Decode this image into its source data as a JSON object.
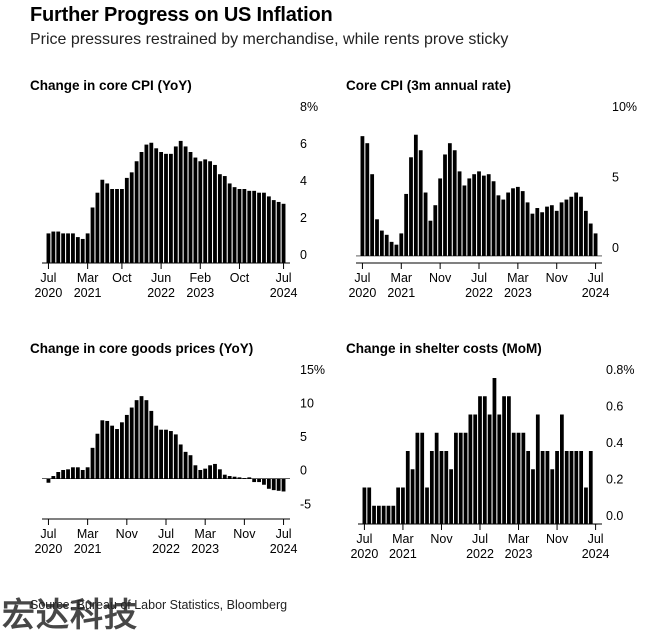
{
  "header": {
    "title": "Further Progress on US Inflation",
    "subtitle": "Price pressures restrained by merchandise, while rents prove sticky"
  },
  "footer": {
    "source": "Source: Bureau of Labor Statistics, Bloomberg"
  },
  "watermark": {
    "text": "宏达科技"
  },
  "colors": {
    "bar": "#000000",
    "axis": "#000000",
    "background": "#ffffff"
  },
  "chart_data": [
    {
      "id": "core-cpi-yoy",
      "type": "bar",
      "title": "Change in core CPI (YoY)",
      "unit": "%",
      "y_ticks": [
        "8%",
        "6",
        "4",
        "2",
        "0"
      ],
      "y_tick_values": [
        8,
        6,
        4,
        2,
        0
      ],
      "ylim": [
        0,
        8
      ],
      "x_ticks": [
        {
          "label": [
            "Jul",
            "2020"
          ],
          "index": 0
        },
        {
          "label": [
            "Mar",
            "2021"
          ],
          "index": 8
        },
        {
          "label": [
            "Oct",
            ""
          ],
          "index": 15
        },
        {
          "label": [
            "Jun",
            "2022"
          ],
          "index": 23
        },
        {
          "label": [
            "Feb",
            "2023"
          ],
          "index": 31
        },
        {
          "label": [
            "Oct",
            ""
          ],
          "index": 39
        },
        {
          "label": [
            "Jul",
            "2024"
          ],
          "index": 48
        }
      ],
      "period": "Jul 2020 - Jul 2024 monthly",
      "values": [
        1.6,
        1.7,
        1.7,
        1.6,
        1.6,
        1.6,
        1.4,
        1.3,
        1.6,
        3.0,
        3.8,
        4.5,
        4.3,
        4.0,
        4.0,
        4.0,
        4.6,
        4.9,
        5.5,
        6.0,
        6.4,
        6.5,
        6.2,
        6.0,
        5.9,
        5.9,
        6.3,
        6.6,
        6.3,
        6.0,
        5.7,
        5.5,
        5.6,
        5.5,
        5.3,
        4.8,
        4.7,
        4.3,
        4.1,
        4.0,
        4.0,
        3.9,
        3.9,
        3.8,
        3.8,
        3.6,
        3.4,
        3.3,
        3.2
      ]
    },
    {
      "id": "core-cpi-3m",
      "type": "bar",
      "title": "Core CPI (3m annual rate)",
      "unit": "%",
      "y_ticks": [
        "10%",
        "5",
        "0"
      ],
      "y_tick_values": [
        10,
        5,
        0
      ],
      "ylim": [
        -0.5,
        10
      ],
      "x_ticks": [
        {
          "label": [
            "Jul",
            "2020"
          ],
          "index": 0
        },
        {
          "label": [
            "Mar",
            "2021"
          ],
          "index": 8
        },
        {
          "label": [
            "Nov",
            ""
          ],
          "index": 16
        },
        {
          "label": [
            "Jul",
            "2022"
          ],
          "index": 24
        },
        {
          "label": [
            "Mar",
            "2023"
          ],
          "index": 32
        },
        {
          "label": [
            "Nov",
            ""
          ],
          "index": 40
        },
        {
          "label": [
            "Jul",
            "2024"
          ],
          "index": 48
        }
      ],
      "period": "Jul 2020 - Jul 2024 monthly",
      "values": [
        8.5,
        8.0,
        5.8,
        2.6,
        1.8,
        1.5,
        1.0,
        0.8,
        1.6,
        4.4,
        7.0,
        8.6,
        7.5,
        4.5,
        2.5,
        3.6,
        5.5,
        7.2,
        8.0,
        7.5,
        6.0,
        5.0,
        5.5,
        5.8,
        6.0,
        5.7,
        5.8,
        5.3,
        4.3,
        4.0,
        4.5,
        4.8,
        4.9,
        4.6,
        3.8,
        3.0,
        3.4,
        3.1,
        3.5,
        3.6,
        3.2,
        3.8,
        4.0,
        4.2,
        4.5,
        4.2,
        3.2,
        2.3,
        1.6
      ]
    },
    {
      "id": "core-goods-yoy",
      "type": "bar",
      "title": "Change in core goods prices (YoY)",
      "unit": "%",
      "y_ticks": [
        "15%",
        "10",
        "5",
        "0",
        "-5"
      ],
      "y_tick_values": [
        15,
        10,
        5,
        0,
        -5
      ],
      "ylim": [
        -6,
        15
      ],
      "x_ticks": [
        {
          "label": [
            "Jul",
            "2020"
          ],
          "index": 0
        },
        {
          "label": [
            "Mar",
            "2021"
          ],
          "index": 8
        },
        {
          "label": [
            "Nov",
            ""
          ],
          "index": 16
        },
        {
          "label": [
            "Jul",
            "2022"
          ],
          "index": 24
        },
        {
          "label": [
            "Mar",
            "2023"
          ],
          "index": 32
        },
        {
          "label": [
            "Nov",
            ""
          ],
          "index": 40
        },
        {
          "label": [
            "Jul",
            "2024"
          ],
          "index": 48
        }
      ],
      "period": "Jul 2020 - Jul 2024 monthly",
      "values": [
        -0.6,
        0.4,
        1.0,
        1.3,
        1.4,
        1.7,
        1.7,
        1.3,
        1.7,
        4.6,
        6.7,
        8.7,
        8.6,
        7.9,
        7.4,
        8.4,
        9.5,
        10.6,
        11.7,
        12.3,
        11.7,
        10.1,
        7.9,
        7.3,
        7.3,
        7.1,
        6.6,
        5.1,
        4.0,
        3.5,
        2.0,
        1.3,
        1.5,
        2.0,
        2.2,
        1.4,
        0.6,
        0.4,
        0.3,
        0.2,
        0.1,
        0.2,
        -0.5,
        -0.5,
        -0.9,
        -1.5,
        -1.7,
        -1.8,
        -1.9
      ]
    },
    {
      "id": "shelter-mom",
      "type": "bar",
      "title": "Change in shelter costs (MoM)",
      "unit": "%",
      "y_ticks": [
        "0.8%",
        "0.6",
        "0.4",
        "0.2",
        "0.0"
      ],
      "y_tick_values": [
        0.8,
        0.6,
        0.4,
        0.2,
        0.0
      ],
      "ylim": [
        0,
        0.8
      ],
      "x_ticks": [
        {
          "label": [
            "Jul",
            "2020"
          ],
          "index": 0
        },
        {
          "label": [
            "Mar",
            "2021"
          ],
          "index": 8
        },
        {
          "label": [
            "Nov",
            ""
          ],
          "index": 16
        },
        {
          "label": [
            "Jul",
            "2022"
          ],
          "index": 24
        },
        {
          "label": [
            "Mar",
            "2023"
          ],
          "index": 32
        },
        {
          "label": [
            "Nov",
            ""
          ],
          "index": 40
        },
        {
          "label": [
            "Jul",
            "2024"
          ],
          "index": 48
        }
      ],
      "period": "Jul 2020 - Jul 2024 monthly",
      "values": [
        0.2,
        0.2,
        0.1,
        0.1,
        0.1,
        0.1,
        0.1,
        0.2,
        0.2,
        0.4,
        0.3,
        0.5,
        0.5,
        0.2,
        0.4,
        0.5,
        0.4,
        0.4,
        0.3,
        0.5,
        0.5,
        0.5,
        0.6,
        0.6,
        0.7,
        0.7,
        0.6,
        0.8,
        0.6,
        0.7,
        0.7,
        0.5,
        0.5,
        0.5,
        0.4,
        0.3,
        0.6,
        0.4,
        0.4,
        0.3,
        0.4,
        0.6,
        0.4,
        0.4,
        0.4,
        0.4,
        0.2,
        0.4,
        0.0
      ]
    }
  ]
}
